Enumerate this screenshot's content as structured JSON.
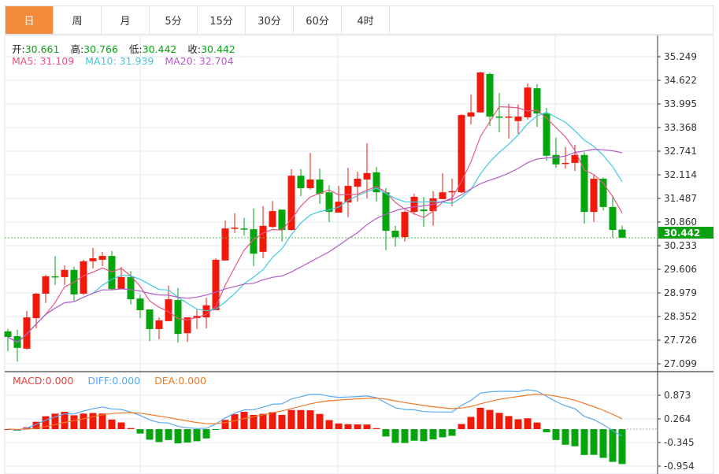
{
  "tabs": [
    "日",
    "周",
    "月",
    "5分",
    "15分",
    "30分",
    "60分",
    "4时"
  ],
  "active_tab": 0,
  "ohlc_legend": {
    "open_label": "开:",
    "open": "30.661",
    "high_label": "高:",
    "high": "30.766",
    "low_label": "低:",
    "low": "30.442",
    "close_label": "收:",
    "close": "30.442"
  },
  "ma_legend": {
    "ma5": "MA5: 31.109",
    "ma10": "MA10: 31.939",
    "ma20": "MA20: 32.704"
  },
  "macd_legend": {
    "macd": "MACD:0.000",
    "diff": "DIFF:0.000",
    "dea": "DEA:0.000"
  },
  "colors": {
    "up": "#f0190a",
    "down": "#05a50e",
    "ma5": "#e8577f",
    "ma10": "#3cc8e0",
    "ma20": "#b45cc8",
    "diff": "#5aa9f0",
    "dea": "#f07a28",
    "active_tab": "#f28c3c"
  },
  "chart_data": {
    "type": "candlestick",
    "price_axis": {
      "ticks": [
        "35.249",
        "34.622",
        "33.995",
        "33.368",
        "32.741",
        "32.114",
        "31.487",
        "30.860",
        "30.233",
        "29.606",
        "28.979",
        "28.352",
        "27.726",
        "27.099"
      ],
      "range": [
        27.099,
        35.249
      ]
    },
    "current_price": "30.442",
    "macd_axis": {
      "ticks": [
        "0.873",
        "0.264",
        "-0.345",
        "-0.954"
      ],
      "range": [
        -0.954,
        0.873
      ]
    },
    "candles": [
      [
        27.96,
        27.81,
        28.02,
        27.43
      ],
      [
        27.83,
        27.52,
        28.0,
        27.16
      ],
      [
        27.5,
        28.33,
        28.5,
        27.47
      ],
      [
        28.31,
        28.96,
        28.98,
        28.04
      ],
      [
        28.96,
        29.42,
        29.46,
        28.71
      ],
      [
        29.42,
        29.4,
        29.96,
        29.19
      ],
      [
        29.4,
        29.59,
        29.71,
        29.19
      ],
      [
        29.59,
        28.94,
        29.67,
        28.77
      ],
      [
        28.96,
        29.82,
        29.86,
        28.92
      ],
      [
        29.82,
        29.9,
        30.17,
        29.63
      ],
      [
        29.86,
        29.96,
        30.07,
        29.69
      ],
      [
        29.96,
        29.08,
        30.09,
        29.06
      ],
      [
        29.08,
        29.4,
        29.67,
        29.08
      ],
      [
        29.4,
        28.81,
        29.56,
        28.67
      ],
      [
        28.83,
        28.52,
        28.94,
        28.31
      ],
      [
        28.54,
        28.02,
        28.54,
        27.7
      ],
      [
        28.02,
        28.25,
        28.33,
        27.75
      ],
      [
        28.23,
        28.81,
        29.17,
        28.23
      ],
      [
        28.79,
        27.89,
        29.11,
        27.66
      ],
      [
        27.91,
        28.33,
        28.33,
        27.68
      ],
      [
        28.31,
        28.37,
        28.54,
        28.02
      ],
      [
        28.33,
        28.65,
        28.85,
        28.04
      ],
      [
        28.52,
        29.86,
        29.9,
        28.52
      ],
      [
        29.84,
        30.69,
        30.9,
        29.84
      ],
      [
        30.69,
        30.71,
        31.09,
        30.57
      ],
      [
        30.69,
        30.67,
        30.97,
        30.5
      ],
      [
        30.67,
        30.02,
        31.22,
        29.69
      ],
      [
        30.07,
        30.76,
        31.28,
        29.9
      ],
      [
        30.73,
        31.15,
        31.42,
        30.71
      ],
      [
        31.19,
        30.65,
        31.19,
        30.34
      ],
      [
        30.65,
        32.09,
        32.26,
        30.63
      ],
      [
        32.09,
        31.76,
        32.26,
        31.55
      ],
      [
        31.76,
        31.99,
        32.7,
        31.72
      ],
      [
        31.99,
        31.61,
        32.28,
        31.34
      ],
      [
        31.65,
        31.13,
        31.84,
        30.86
      ],
      [
        31.11,
        31.4,
        31.82,
        31.11
      ],
      [
        31.38,
        31.82,
        32.3,
        30.99
      ],
      [
        31.8,
        32.01,
        32.2,
        31.4
      ],
      [
        31.99,
        32.16,
        32.95,
        31.49
      ],
      [
        32.18,
        31.65,
        32.32,
        31.4
      ],
      [
        31.65,
        30.63,
        31.76,
        30.11
      ],
      [
        30.63,
        30.46,
        30.76,
        30.21
      ],
      [
        30.46,
        31.13,
        31.17,
        30.34
      ],
      [
        31.13,
        31.53,
        31.61,
        31.05
      ],
      [
        31.19,
        31.15,
        31.53,
        30.73
      ],
      [
        31.15,
        31.49,
        31.68,
        30.76
      ],
      [
        31.47,
        31.65,
        32.16,
        31.47
      ],
      [
        31.65,
        31.68,
        32.01,
        31.28
      ],
      [
        31.65,
        33.7,
        33.72,
        31.63
      ],
      [
        33.66,
        33.77,
        34.25,
        33.45
      ],
      [
        33.77,
        34.83,
        34.85,
        33.77
      ],
      [
        34.79,
        33.66,
        34.83,
        33.41
      ],
      [
        33.66,
        33.64,
        34.29,
        33.24
      ],
      [
        33.64,
        33.66,
        34.0,
        33.08
      ],
      [
        33.54,
        33.66,
        33.98,
        33.2
      ],
      [
        33.64,
        34.43,
        34.54,
        33.58
      ],
      [
        34.41,
        33.74,
        34.52,
        33.39
      ],
      [
        33.74,
        32.62,
        33.89,
        32.49
      ],
      [
        32.64,
        32.39,
        33.1,
        32.3
      ],
      [
        32.41,
        32.43,
        32.85,
        32.28
      ],
      [
        32.43,
        32.64,
        32.91,
        32.22
      ],
      [
        32.64,
        31.13,
        32.72,
        30.82
      ],
      [
        31.13,
        32.01,
        32.11,
        30.86
      ],
      [
        32.01,
        31.26,
        32.05,
        31.17
      ],
      [
        31.26,
        30.65,
        31.55,
        30.45
      ],
      [
        30.661,
        30.442,
        30.766,
        30.442
      ]
    ]
  }
}
